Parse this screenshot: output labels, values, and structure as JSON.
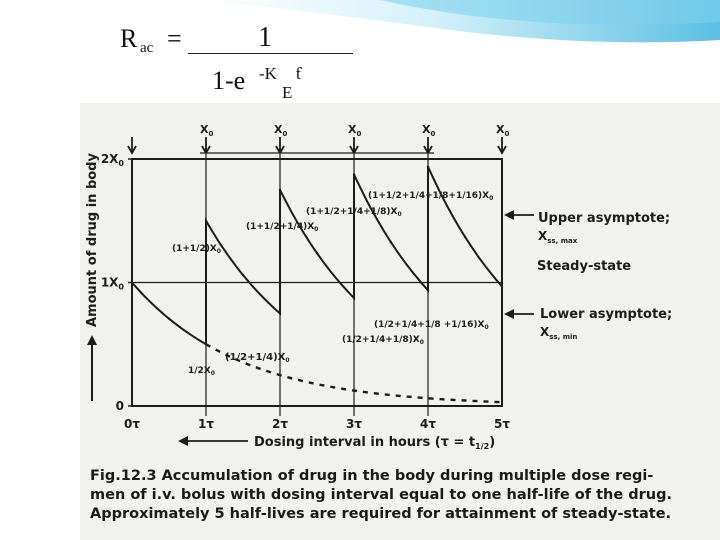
{
  "formula": {
    "lhs_main": "R",
    "lhs_sub": "ac",
    "equals": "=",
    "numerator": "1",
    "denominator_base": "1-e",
    "exponent_main": "-K",
    "exponent_sub": "E",
    "exponent_tail": "ƭ"
  },
  "figure": {
    "y_axis_label": "Amount of drug in body",
    "x_axis_label": "Dosing interval in hours (τ = t",
    "x_axis_label_sub": "1/2",
    "x_axis_label_end": ")",
    "dose_marker_main": "X",
    "dose_marker_sub": "0",
    "y_ticks": [
      {
        "value": 2,
        "label": "2X",
        "sub": "0"
      },
      {
        "value": 1,
        "label": "1X",
        "sub": "0"
      },
      {
        "value": 0,
        "label": "0",
        "sub": ""
      }
    ],
    "x_ticks": [
      "0τ",
      "1τ",
      "2τ",
      "3τ",
      "4τ",
      "5τ"
    ],
    "annotations": {
      "dose1_peak": "(1+1/2)X",
      "dose2_peak": "(1+1/2+1/4)X",
      "dose3_peak": "(1+1/2+1/4+1/8)X",
      "dose4_peak": "(1+1/2+1/4+1/8+1/16)X",
      "half": "1/2X",
      "trough2": "(1/2+1/4)X",
      "trough3": "(1/2+1/4+1/8)X",
      "trough4": "(1/2+1/4+1/8 +1/16)X",
      "sub0": "0"
    },
    "right_labels": {
      "upper_title": "Upper asymptote;",
      "upper_symbol": "X",
      "upper_sub": "ss, max",
      "steady": "Steady-state",
      "lower_title": "Lower asymptote;",
      "lower_symbol": "X",
      "lower_sub": "ss, min"
    },
    "caption_lines": [
      "Fig.12.3  Accumulation of drug in the body during multiple dose regi-",
      "men of i.v. bolus with dosing interval equal to one half-life of the drug.",
      "Approximately 5 half-lives are required for attainment of steady-state."
    ],
    "colors": {
      "ink": "#1c1c1c",
      "panel": "#f1f1ef",
      "slide_accent": "#2aa9d8"
    }
  },
  "chart_data": {
    "type": "line",
    "xlabel": "Dosing interval in hours (τ = t1/2)",
    "ylabel": "Amount of drug in body",
    "x_tick_labels": [
      "0τ",
      "1τ",
      "2τ",
      "3τ",
      "4τ",
      "5τ"
    ],
    "y_tick_labels": [
      "0",
      "1X0",
      "2X0"
    ],
    "xlim": [
      0,
      5
    ],
    "ylim": [
      0,
      2
    ],
    "series": [
      {
        "x": [
          0,
          0.5,
          1,
          1,
          1.5,
          2,
          2,
          2.5,
          3,
          3,
          3.5,
          4,
          4,
          4.5,
          5
        ],
        "values": [
          1,
          0.707,
          0.5,
          1.5,
          1.061,
          0.75,
          1.75,
          1.237,
          0.875,
          1.875,
          1.326,
          0.9375,
          1.9375,
          1.37,
          0.969
        ]
      },
      {
        "style": "dashed",
        "x": [
          1,
          2,
          3,
          4,
          5
        ],
        "values": [
          0.5,
          0.25,
          0.125,
          0.0625,
          0.031
        ]
      }
    ]
  }
}
